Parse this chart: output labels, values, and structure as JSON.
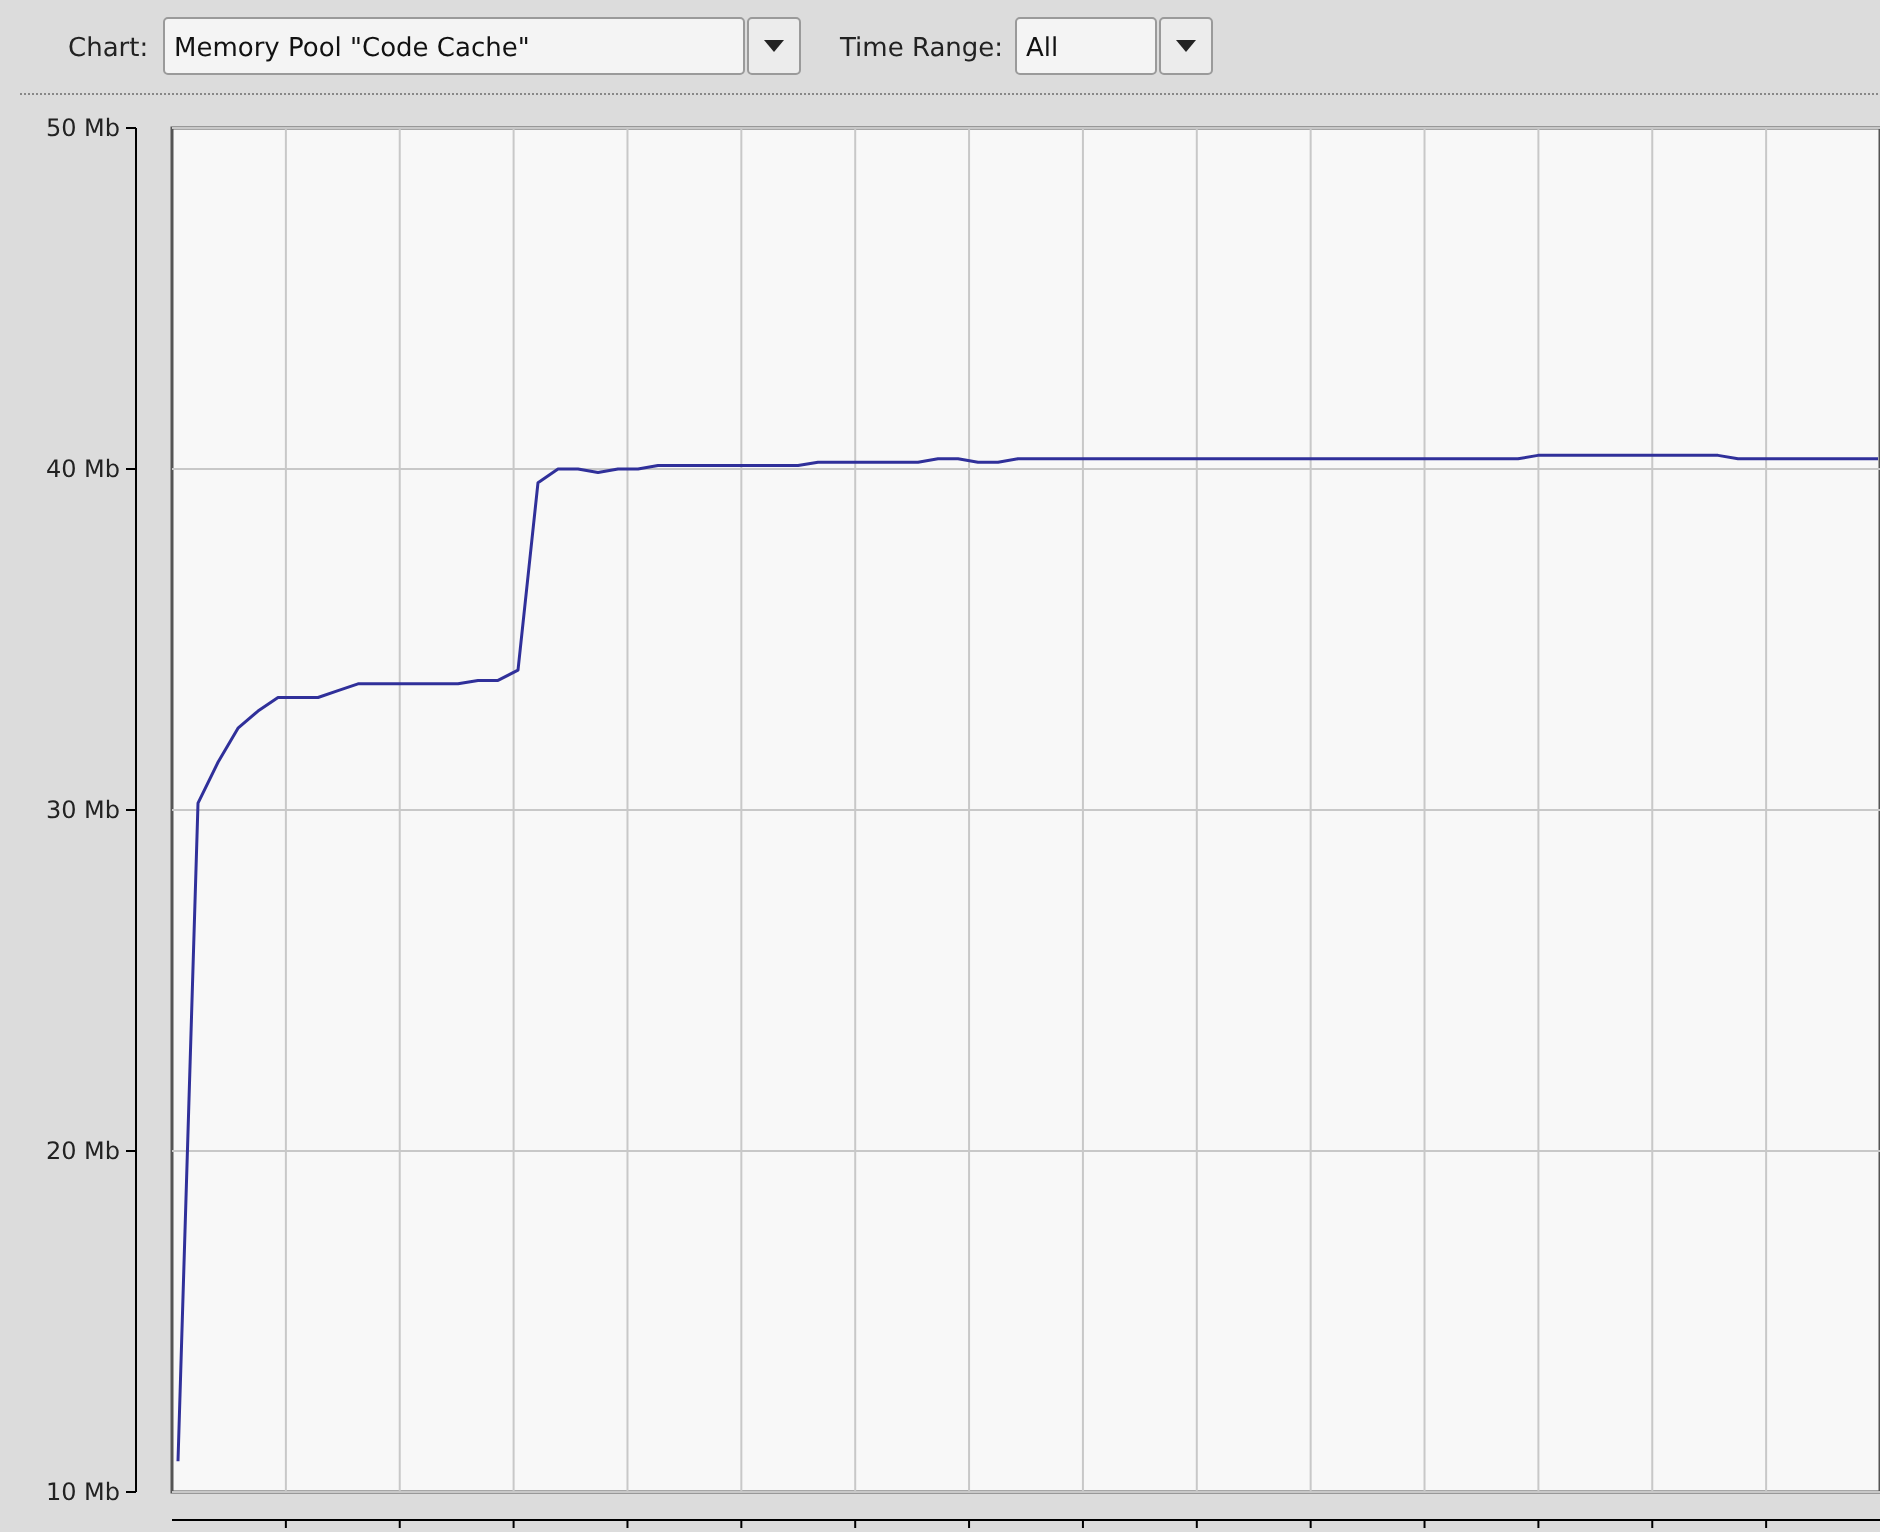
{
  "chart_data": {
    "type": "line",
    "annotations": [
      "Chart:",
      "Memory Pool \"Code Cache\"",
      "Time Range:",
      "All"
    ],
    "categories": [
      null,
      null,
      null,
      null,
      null,
      null,
      null,
      null,
      null,
      null,
      null,
      null,
      null,
      null,
      null,
      null,
      null,
      null,
      null,
      null,
      null,
      null,
      null,
      null,
      null,
      null,
      null,
      null,
      null,
      null,
      null,
      null,
      null,
      null,
      null,
      null,
      null,
      null,
      null,
      null,
      null,
      null,
      null,
      null,
      null,
      null,
      null,
      null,
      null,
      null,
      null,
      null,
      null,
      null,
      null,
      null,
      null,
      null,
      null,
      null,
      null,
      null,
      null,
      null,
      null,
      null,
      null,
      null,
      null,
      null,
      null,
      null,
      null,
      null,
      null,
      null,
      null,
      null,
      null,
      null,
      null,
      null,
      null,
      null,
      null,
      null
    ],
    "series": [
      {
        "color": "#30309a",
        "values": [
          10.9,
          30.2,
          31.4,
          32.4,
          32.9,
          33.3,
          33.3,
          33.3,
          33.5,
          33.7,
          33.7,
          33.7,
          33.7,
          33.7,
          33.7,
          33.8,
          33.8,
          34.1,
          39.6,
          40.0,
          40.0,
          39.9,
          40.0,
          40.0,
          40.1,
          40.1,
          40.1,
          40.1,
          40.1,
          40.1,
          40.1,
          40.1,
          40.2,
          40.2,
          40.2,
          40.2,
          40.2,
          40.2,
          40.3,
          40.3,
          40.2,
          40.2,
          40.3,
          40.3,
          40.3,
          40.3,
          40.3,
          40.3,
          40.3,
          40.3,
          40.3,
          40.3,
          40.3,
          40.3,
          40.3,
          40.3,
          40.3,
          40.3,
          40.3,
          40.3,
          40.3,
          40.3,
          40.3,
          40.3,
          40.3,
          40.3,
          40.3,
          40.3,
          40.4,
          40.4,
          40.4,
          40.4,
          40.4,
          40.4,
          40.4,
          40.4,
          40.4,
          40.4,
          40.3,
          40.3,
          40.3,
          40.3,
          40.3,
          40.3,
          40.3,
          40.3
        ]
      }
    ],
    "ylim": [
      10,
      50
    ],
    "yticks": [
      {
        "value": 10,
        "label": "10 Mb"
      },
      {
        "value": 20,
        "label": "20 Mb"
      },
      {
        "value": 30,
        "label": "30 Mb"
      },
      {
        "value": 40,
        "label": "40 Mb"
      },
      {
        "value": 50,
        "label": "50 Mb"
      }
    ],
    "grid": true
  }
}
